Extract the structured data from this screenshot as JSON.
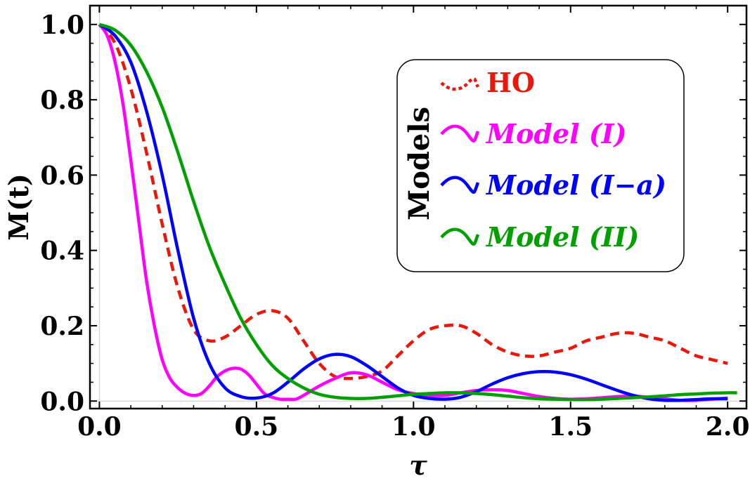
{
  "chart_data": {
    "type": "line",
    "xlabel": "τ",
    "ylabel": "M(t)",
    "xlim": [
      -0.03,
      2.06
    ],
    "ylim": [
      -0.02,
      1.05
    ],
    "xticks": [
      0.0,
      0.5,
      1.0,
      1.5,
      2.0
    ],
    "xtick_labels": [
      "0.0",
      "0.5",
      "1.0",
      "1.5",
      "2.0"
    ],
    "yticks": [
      0.0,
      0.2,
      0.4,
      0.6,
      0.8,
      1.0
    ],
    "ytick_labels": [
      "0.0",
      "0.2",
      "0.4",
      "0.6",
      "0.8",
      "1.0"
    ],
    "grid": false,
    "legend_title": "Models",
    "legend_position": "upper-right",
    "series": [
      {
        "name": "HO",
        "color": "#e8180d",
        "style": "dashed",
        "x": [
          0.0,
          0.05,
          0.1,
          0.15,
          0.2,
          0.25,
          0.3,
          0.35,
          0.4,
          0.45,
          0.5,
          0.55,
          0.6,
          0.65,
          0.7,
          0.75,
          0.8,
          0.85,
          0.9,
          0.95,
          1.0,
          1.05,
          1.1,
          1.15,
          1.2,
          1.25,
          1.3,
          1.35,
          1.4,
          1.45,
          1.5,
          1.55,
          1.6,
          1.65,
          1.7,
          1.75,
          1.8,
          1.85,
          1.9,
          1.95,
          2.0
        ],
        "y": [
          1.0,
          0.95,
          0.83,
          0.66,
          0.47,
          0.3,
          0.19,
          0.16,
          0.17,
          0.2,
          0.23,
          0.24,
          0.22,
          0.16,
          0.1,
          0.065,
          0.06,
          0.065,
          0.08,
          0.12,
          0.16,
          0.19,
          0.2,
          0.2,
          0.18,
          0.15,
          0.13,
          0.12,
          0.12,
          0.13,
          0.14,
          0.16,
          0.17,
          0.18,
          0.18,
          0.17,
          0.16,
          0.14,
          0.12,
          0.11,
          0.1
        ]
      },
      {
        "name": "Model (I)",
        "color": "#ff00ff",
        "style": "solid",
        "x": [
          0.0,
          0.025,
          0.05,
          0.075,
          0.1,
          0.125,
          0.15,
          0.175,
          0.2,
          0.225,
          0.25,
          0.275,
          0.3,
          0.325,
          0.35,
          0.375,
          0.4,
          0.425,
          0.45,
          0.475,
          0.5,
          0.525,
          0.55,
          0.575,
          0.6,
          0.625,
          0.65,
          0.7,
          0.75,
          0.8,
          0.85,
          0.9,
          0.95,
          1.0,
          1.05,
          1.1,
          1.15,
          1.2,
          1.25,
          1.3,
          1.35,
          1.4,
          1.45,
          1.5,
          1.55,
          1.6,
          1.65,
          1.7,
          1.75,
          1.8,
          1.85,
          1.9,
          1.95,
          2.0
        ],
        "y": [
          1.0,
          0.97,
          0.9,
          0.79,
          0.64,
          0.48,
          0.32,
          0.2,
          0.11,
          0.06,
          0.035,
          0.02,
          0.015,
          0.02,
          0.04,
          0.065,
          0.08,
          0.087,
          0.085,
          0.07,
          0.045,
          0.02,
          0.01,
          0.005,
          0.005,
          0.005,
          0.015,
          0.04,
          0.06,
          0.075,
          0.07,
          0.05,
          0.03,
          0.02,
          0.015,
          0.015,
          0.022,
          0.028,
          0.03,
          0.028,
          0.02,
          0.012,
          0.007,
          0.005,
          0.006,
          0.009,
          0.012,
          0.013,
          0.01,
          0.006,
          0.002,
          0.002,
          0.005,
          0.008
        ]
      },
      {
        "name": "Model (I−a)",
        "color": "#0000ff",
        "style": "solid",
        "x": [
          0.0,
          0.05,
          0.1,
          0.15,
          0.2,
          0.25,
          0.3,
          0.35,
          0.4,
          0.45,
          0.5,
          0.55,
          0.6,
          0.65,
          0.7,
          0.75,
          0.8,
          0.85,
          0.9,
          0.95,
          1.0,
          1.05,
          1.1,
          1.15,
          1.2,
          1.25,
          1.3,
          1.35,
          1.4,
          1.45,
          1.5,
          1.55,
          1.6,
          1.65,
          1.7,
          1.75,
          1.8,
          1.85,
          1.9,
          1.95,
          2.0
        ],
        "y": [
          1.0,
          0.97,
          0.9,
          0.77,
          0.6,
          0.4,
          0.22,
          0.1,
          0.035,
          0.012,
          0.008,
          0.02,
          0.05,
          0.085,
          0.112,
          0.124,
          0.118,
          0.095,
          0.065,
          0.035,
          0.015,
          0.007,
          0.005,
          0.01,
          0.025,
          0.045,
          0.062,
          0.073,
          0.078,
          0.077,
          0.07,
          0.058,
          0.043,
          0.028,
          0.015,
          0.006,
          0.002,
          0.002,
          0.004,
          0.006,
          0.006
        ]
      },
      {
        "name": "Model (II)",
        "color": "#00a000",
        "style": "solid",
        "x": [
          0.0,
          0.05,
          0.1,
          0.15,
          0.2,
          0.25,
          0.3,
          0.35,
          0.4,
          0.45,
          0.5,
          0.55,
          0.6,
          0.65,
          0.7,
          0.75,
          0.8,
          0.85,
          0.9,
          0.95,
          1.0,
          1.05,
          1.1,
          1.15,
          1.2,
          1.25,
          1.3,
          1.35,
          1.4,
          1.45,
          1.5,
          1.55,
          1.6,
          1.65,
          1.7,
          1.75,
          1.8,
          1.85,
          1.9,
          1.95,
          2.0,
          2.03
        ],
        "y": [
          1.0,
          0.985,
          0.945,
          0.875,
          0.78,
          0.66,
          0.53,
          0.41,
          0.31,
          0.22,
          0.15,
          0.095,
          0.06,
          0.035,
          0.018,
          0.01,
          0.007,
          0.007,
          0.01,
          0.014,
          0.018,
          0.02,
          0.022,
          0.022,
          0.02,
          0.017,
          0.013,
          0.009,
          0.006,
          0.005,
          0.004,
          0.004,
          0.005,
          0.007,
          0.009,
          0.011,
          0.014,
          0.017,
          0.019,
          0.021,
          0.022,
          0.022
        ]
      }
    ]
  }
}
